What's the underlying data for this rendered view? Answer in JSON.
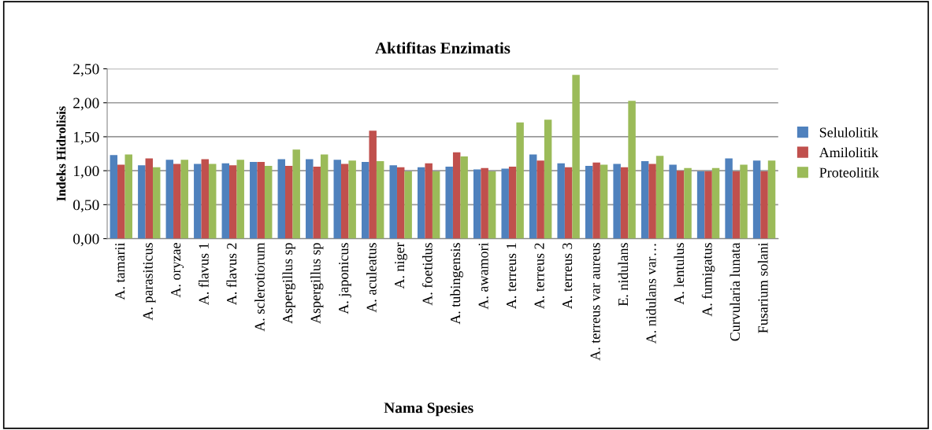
{
  "chart_data": {
    "type": "bar",
    "title": "Aktifitas Enzimatis",
    "xlabel": "Nama Spesies",
    "ylabel": "Indeks Hidrolisis",
    "categories": [
      "A. tamarii",
      "A. parasiticus",
      "A. oryzae",
      "A. flavus 1",
      "A. flavus 2",
      "A. sclerotiorum",
      "Aspergillus sp",
      "Aspergillus sp",
      "A. japonicus",
      "A. aculeatus",
      "A. niger",
      "A. foetidus",
      "A. tubingensis",
      "A. awamori",
      "A. terreus 1",
      "A. terreus 2",
      "A. terreus 3",
      "A. terreus var aureus",
      "E. nidulans",
      "A. nidulans var…",
      "A. lentulus",
      "A. fumigatus",
      "Curvularia lunata",
      "Fusarium solani"
    ],
    "series": [
      {
        "name": "Selulolitik",
        "color": "#4f81bd",
        "values": [
          1.23,
          1.08,
          1.16,
          1.1,
          1.11,
          1.13,
          1.17,
          1.17,
          1.16,
          1.13,
          1.08,
          1.05,
          1.06,
          1.02,
          1.03,
          1.24,
          1.11,
          1.07,
          1.1,
          1.14,
          1.09,
          0.99,
          1.18,
          1.15
        ]
      },
      {
        "name": "Amilolitik",
        "color": "#c0504d",
        "values": [
          1.09,
          1.18,
          1.1,
          1.17,
          1.08,
          1.13,
          1.07,
          1.06,
          1.1,
          1.59,
          1.05,
          1.11,
          1.27,
          1.04,
          1.06,
          1.15,
          1.05,
          1.12,
          1.05,
          1.1,
          1.0,
          0.99,
          0.99,
          0.99
        ]
      },
      {
        "name": "Proteolitik",
        "color": "#9bbb59",
        "values": [
          1.24,
          1.05,
          1.16,
          1.1,
          1.16,
          1.07,
          1.31,
          1.24,
          1.15,
          1.14,
          0.99,
          0.99,
          1.21,
          0.99,
          1.71,
          1.75,
          2.41,
          1.09,
          2.03,
          1.22,
          1.04,
          1.04,
          1.09,
          1.15
        ]
      }
    ],
    "ylim": [
      0,
      2.5
    ],
    "yticks": [
      {
        "value": 0,
        "label": "0,00"
      },
      {
        "value": 0.5,
        "label": "0,50"
      },
      {
        "value": 1.0,
        "label": "1,00"
      },
      {
        "value": 1.5,
        "label": "1,50"
      },
      {
        "value": 2.0,
        "label": "2,00"
      },
      {
        "value": 2.5,
        "label": "2,50"
      }
    ],
    "grid": "y",
    "legend": "right"
  }
}
